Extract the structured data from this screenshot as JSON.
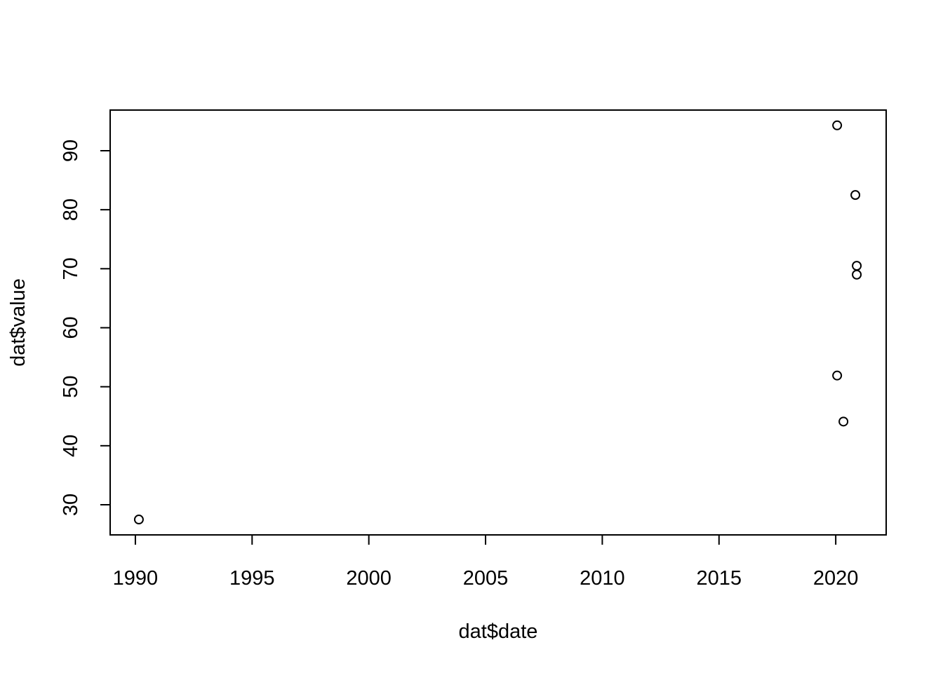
{
  "chart_data": {
    "type": "scatter",
    "x_label": "dat$date",
    "y_label": "dat$value",
    "x": [
      1990.15,
      2020.06,
      2020.84,
      2020.9,
      2020.9,
      2020.06,
      2020.33
    ],
    "values": [
      27.5,
      94.3,
      82.5,
      70.5,
      69.0,
      51.9,
      44.1
    ],
    "color": "#000000",
    "xlim": [
      1988.92,
      2022.16
    ],
    "ylim": [
      24.89,
      96.89
    ],
    "xticks": [
      1990,
      1995,
      2000,
      2005,
      2010,
      2015,
      2020
    ],
    "yticks": [
      30,
      40,
      50,
      60,
      70,
      80,
      90
    ]
  }
}
